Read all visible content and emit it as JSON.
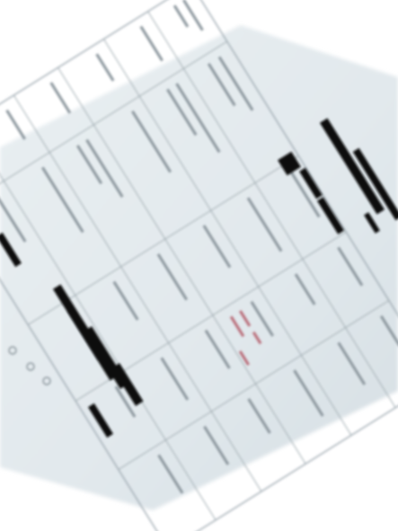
{
  "document": {
    "kind": "rotated-photographed-form",
    "legibility": "illegible",
    "colors": {
      "background": "#ffffff",
      "paper": "#e4ebee",
      "paper_shadow": "#c9d3d8",
      "grid_line": "#9aa6ad",
      "faint_text": "#8c979e",
      "redaction": "#111111",
      "red_ink": "#b04a5a"
    },
    "redactions_count": 11,
    "text": []
  }
}
